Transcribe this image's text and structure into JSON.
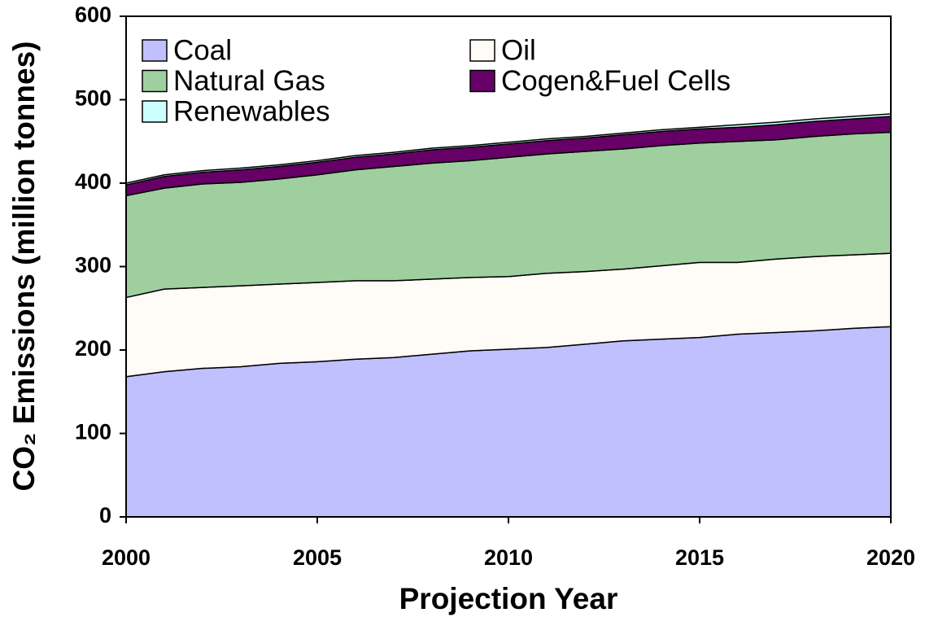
{
  "chart_data": {
    "type": "stacked-area",
    "x_label": "Projection Year",
    "y_label": "CO₂ Emissions (million tonnes)",
    "x": [
      2000,
      2001,
      2002,
      2003,
      2004,
      2005,
      2006,
      2007,
      2008,
      2009,
      2010,
      2011,
      2012,
      2013,
      2014,
      2015,
      2016,
      2017,
      2018,
      2019,
      2020
    ],
    "series": [
      {
        "name": "Coal",
        "color": "#c0c0ff",
        "values": [
          168,
          174,
          178,
          180,
          184,
          186,
          189,
          191,
          195,
          199,
          201,
          203,
          207,
          211,
          213,
          215,
          219,
          221,
          223,
          226,
          228
        ]
      },
      {
        "name": "Oil",
        "color": "#fffbf7",
        "values": [
          95,
          99,
          97,
          97,
          95,
          95,
          94,
          92,
          90,
          88,
          87,
          89,
          87,
          86,
          88,
          90,
          86,
          88,
          89,
          88,
          88
        ]
      },
      {
        "name": "Natural Gas",
        "color": "#9fcf9f",
        "values": [
          122,
          121,
          124,
          124,
          126,
          129,
          133,
          137,
          139,
          140,
          143,
          143,
          144,
          144,
          144,
          143,
          145,
          143,
          144,
          145,
          145
        ]
      },
      {
        "name": "Cogen&Fuel Cells",
        "color": "#660066",
        "values": [
          13,
          14,
          14,
          15,
          15,
          15,
          15,
          15,
          16,
          16,
          16,
          16,
          16,
          17,
          17,
          17,
          17,
          18,
          18,
          18,
          19
        ]
      },
      {
        "name": "Renewables",
        "color": "#ccffff",
        "values": [
          2,
          2,
          2,
          2,
          2,
          2,
          2,
          2,
          2,
          2,
          2,
          2,
          2,
          2,
          2,
          2,
          3,
          3,
          3,
          3,
          3
        ]
      }
    ],
    "xlim": [
      2000,
      2020
    ],
    "xticks": [
      2000,
      2005,
      2010,
      2015,
      2020
    ],
    "ylim": [
      0,
      600
    ],
    "yticks": [
      0,
      100,
      200,
      300,
      400,
      500,
      600
    ],
    "legend": "top-left"
  }
}
